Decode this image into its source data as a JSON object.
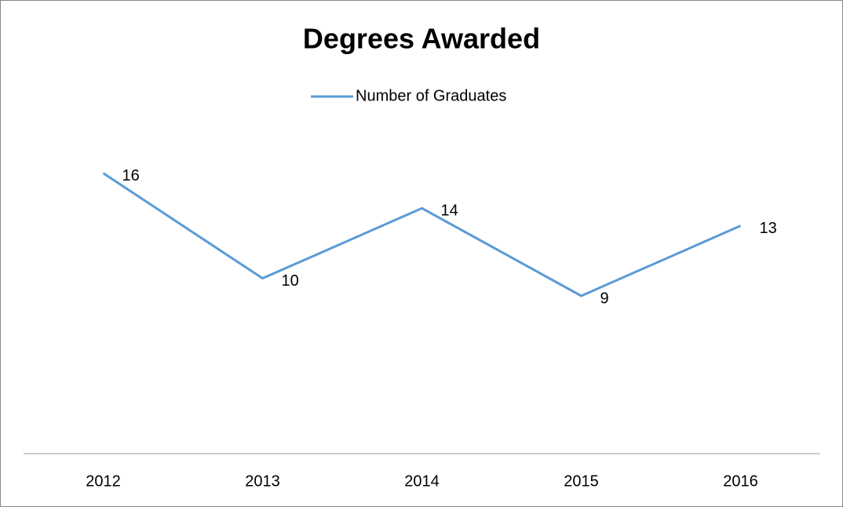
{
  "chart_data": {
    "type": "line",
    "title": "Degrees Awarded",
    "categories": [
      "2012",
      "2013",
      "2014",
      "2015",
      "2016"
    ],
    "series": [
      {
        "name": "Number of Graduates",
        "color": "#5b9bd5",
        "values": [
          16,
          10,
          14,
          9,
          13
        ]
      }
    ],
    "ylim": [
      0,
      18
    ],
    "legend": "top"
  }
}
